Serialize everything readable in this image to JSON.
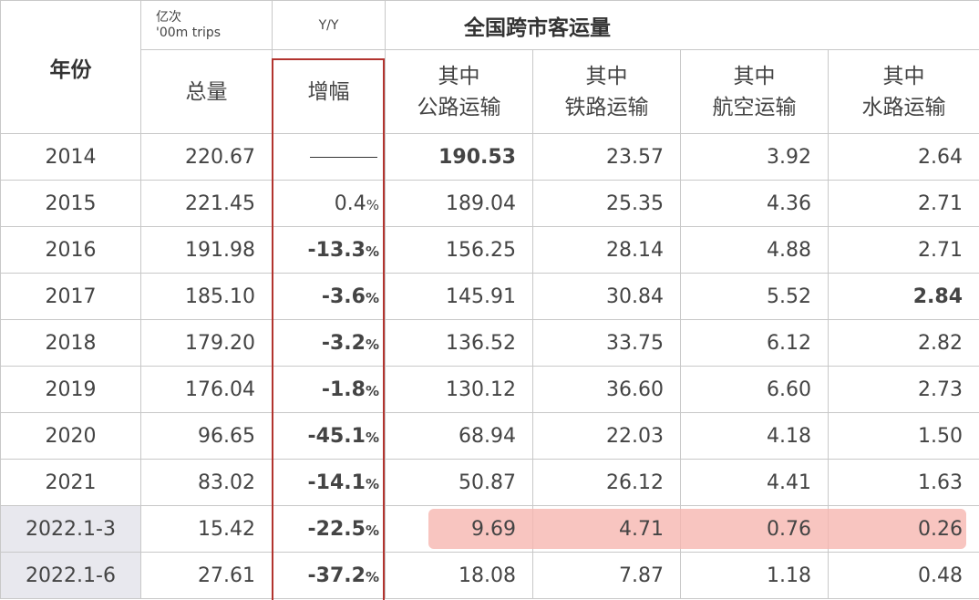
{
  "header": {
    "year_label": "年份",
    "unit_cn": "亿次",
    "unit_en": "'00m trips",
    "yy_label": "Y/Y",
    "title": "全国跨市客运量",
    "columns": {
      "total": "总量",
      "growth": "增幅",
      "road": [
        "其中",
        "公路运输"
      ],
      "rail": [
        "其中",
        "铁路运输"
      ],
      "air": [
        "其中",
        "航空运输"
      ],
      "water": [
        "其中",
        "水路运输"
      ]
    }
  },
  "rows": [
    {
      "year": "2014",
      "total": "220.67",
      "yy": "—",
      "road": "190.53",
      "rail": "23.57",
      "air": "3.92",
      "water": "2.64"
    },
    {
      "year": "2015",
      "total": "221.45",
      "yy": "0.4",
      "road": "189.04",
      "rail": "25.35",
      "air": "4.36",
      "water": "2.71"
    },
    {
      "year": "2016",
      "total": "191.98",
      "yy": "-13.3",
      "road": "156.25",
      "rail": "28.14",
      "air": "4.88",
      "water": "2.71"
    },
    {
      "year": "2017",
      "total": "185.10",
      "yy": "-3.6",
      "road": "145.91",
      "rail": "30.84",
      "air": "5.52",
      "water": "2.84"
    },
    {
      "year": "2018",
      "total": "179.20",
      "yy": "-3.2",
      "road": "136.52",
      "rail": "33.75",
      "air": "6.12",
      "water": "2.82"
    },
    {
      "year": "2019",
      "total": "176.04",
      "yy": "-1.8",
      "road": "130.12",
      "rail": "36.60",
      "air": "6.60",
      "water": "2.73"
    },
    {
      "year": "2020",
      "total": "96.65",
      "yy": "-45.1",
      "road": "68.94",
      "rail": "22.03",
      "air": "4.18",
      "water": "1.50"
    },
    {
      "year": "2021",
      "total": "83.02",
      "yy": "-14.1",
      "road": "50.87",
      "rail": "26.12",
      "air": "4.41",
      "water": "1.63"
    },
    {
      "year": "2022.1-3",
      "total": "15.42",
      "yy": "-22.5",
      "road": "9.69",
      "rail": "4.71",
      "air": "0.76",
      "water": "0.26"
    },
    {
      "year": "2022.1-6",
      "total": "27.61",
      "yy": "-37.2",
      "road": "18.08",
      "rail": "7.87",
      "air": "1.18",
      "water": "0.48"
    }
  ],
  "pct_sign": "%",
  "colors": {
    "negative": "#c0392b",
    "frame": "#b2342f",
    "highlight_band": "#f6b7b0",
    "gold": "#9a7a2c"
  }
}
